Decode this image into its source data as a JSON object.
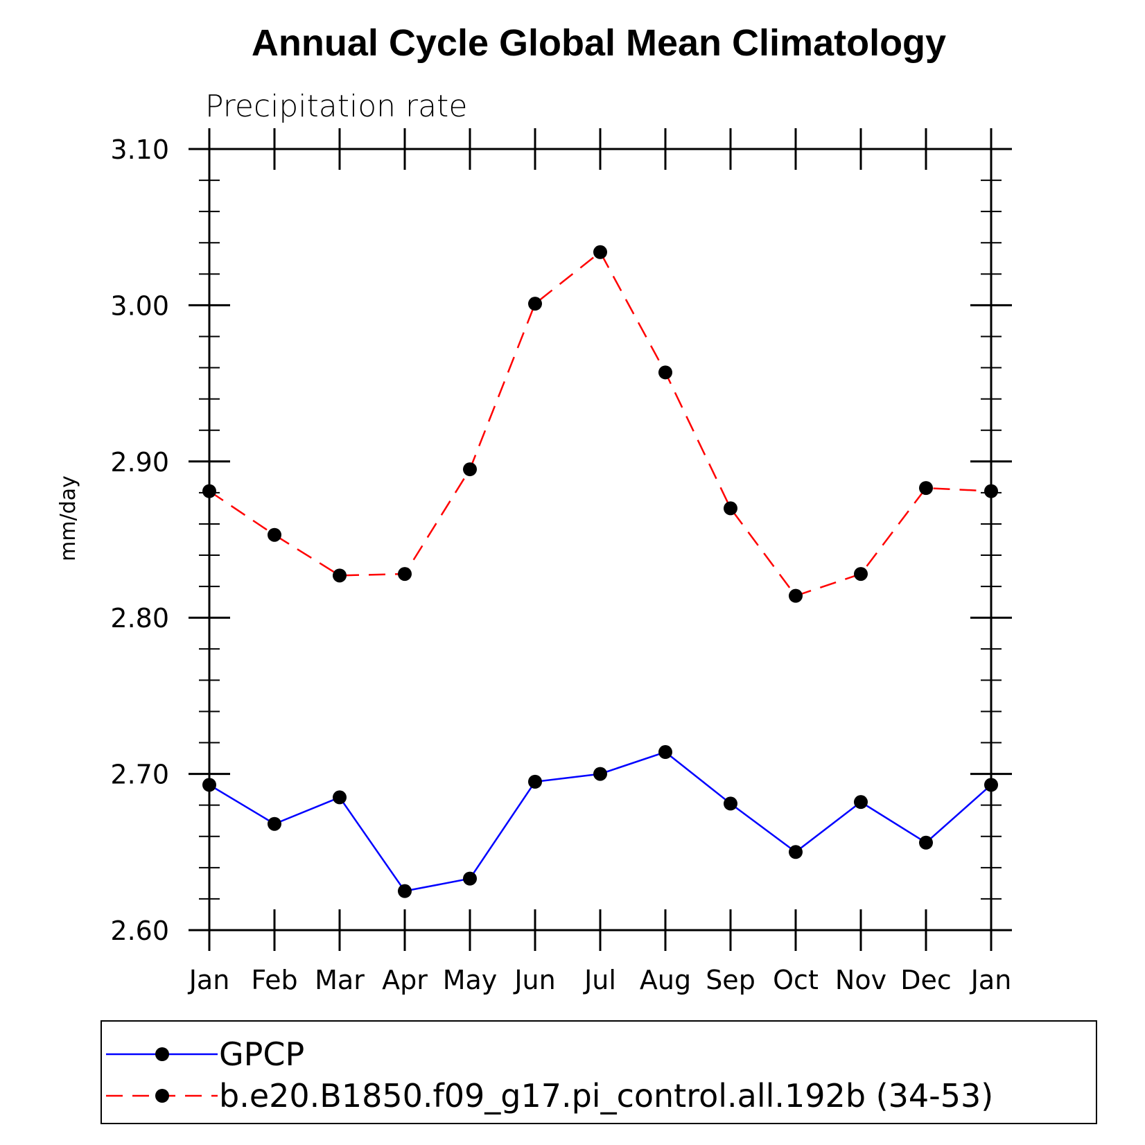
{
  "chart_data": {
    "type": "line",
    "title": "Annual Cycle Global Mean Climatology",
    "subtitle": "Precipitation rate",
    "xlabel": "",
    "ylabel": "mm/day",
    "ylim": [
      2.6,
      3.1
    ],
    "yticks": [
      "2.60",
      "2.70",
      "2.80",
      "2.90",
      "3.00",
      "3.10"
    ],
    "categories": [
      "Jan",
      "Feb",
      "Mar",
      "Apr",
      "May",
      "Jun",
      "Jul",
      "Aug",
      "Sep",
      "Oct",
      "Nov",
      "Dec",
      "Jan"
    ],
    "series": [
      {
        "name": "GPCP",
        "color": "#0000ff",
        "dash": "solid",
        "values": [
          2.693,
          2.668,
          2.685,
          2.625,
          2.633,
          2.695,
          2.7,
          2.714,
          2.681,
          2.65,
          2.682,
          2.656,
          2.693
        ]
      },
      {
        "name": "b.e20.B1850.f09_g17.pi_control.all.192b (34-53)",
        "color": "#ff0000",
        "dash": "dashed",
        "values": [
          2.881,
          2.853,
          2.827,
          2.828,
          2.895,
          3.001,
          3.034,
          2.957,
          2.87,
          2.814,
          2.828,
          2.883,
          2.881
        ]
      }
    ],
    "legend": "bottom"
  }
}
